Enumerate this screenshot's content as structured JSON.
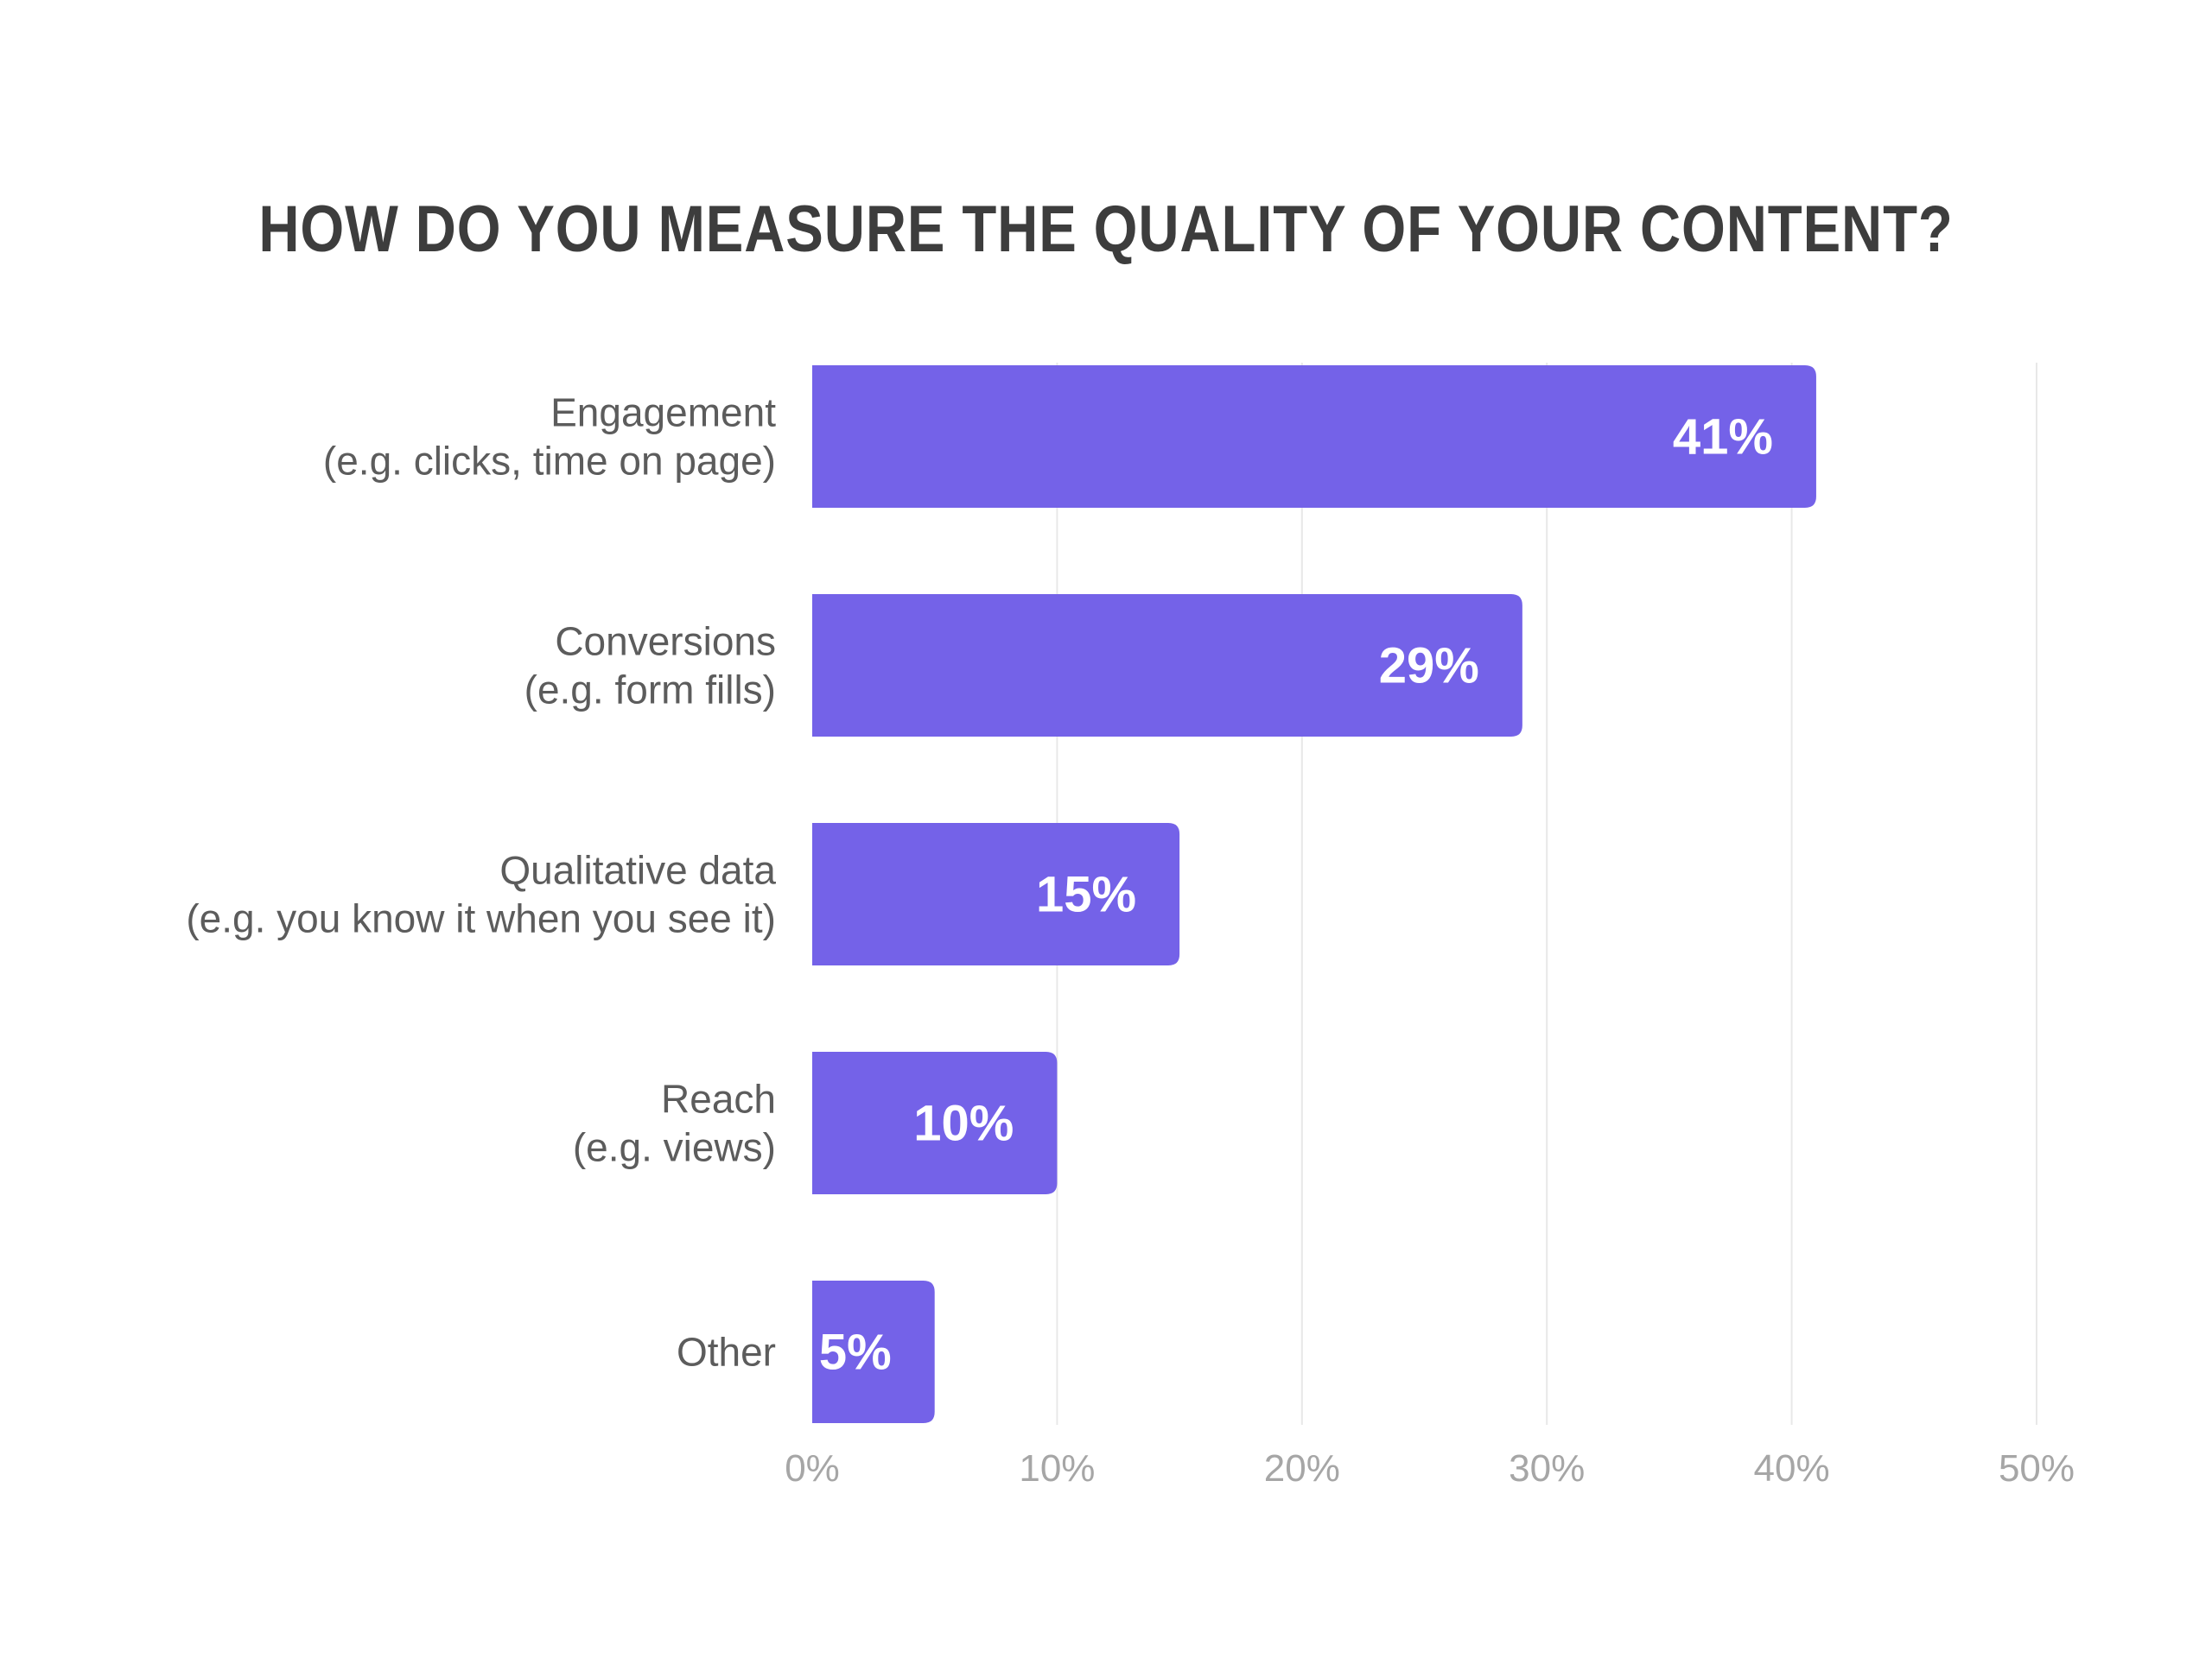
{
  "chart_data": {
    "type": "bar",
    "orientation": "horizontal",
    "title": "HOW DO YOU MEASURE THE QUALITY OF YOUR CONTENT?",
    "categories": [
      {
        "name": "Engagement",
        "detail": "(e.g. clicks, time on page)"
      },
      {
        "name": "Conversions",
        "detail": "(e.g. form fills)"
      },
      {
        "name": "Qualitative data",
        "detail": "(e.g. you know it when you see it)"
      },
      {
        "name": "Reach",
        "detail": "(e.g. views)"
      },
      {
        "name": "Other",
        "detail": ""
      }
    ],
    "values": [
      41,
      29,
      15,
      10,
      5
    ],
    "value_labels": [
      "41%",
      "29%",
      "15%",
      "10%",
      "5%"
    ],
    "xlim": [
      0,
      50
    ],
    "x_ticks": [
      0,
      10,
      20,
      30,
      40,
      50
    ],
    "x_tick_labels": [
      "0%",
      "10%",
      "20%",
      "30%",
      "40%",
      "50%"
    ],
    "grid": "vertical",
    "colors": {
      "bar": "#7462e8",
      "grid": "#e8e8e8",
      "title": "#3d3d3d",
      "category_text": "#5c5c5c",
      "tick_text": "#a6a6a6",
      "value_text": "#ffffff"
    }
  }
}
